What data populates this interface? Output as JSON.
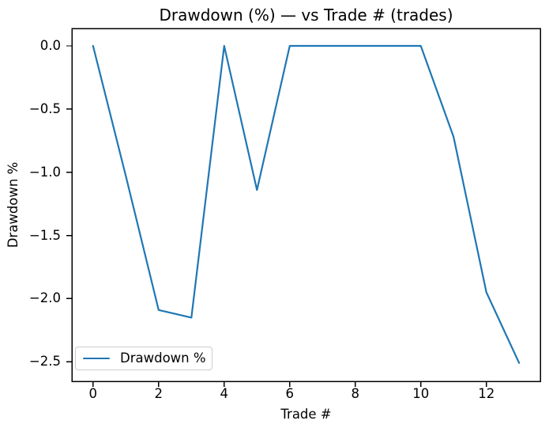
{
  "chart_data": {
    "type": "line",
    "title": "Drawdown (%) — vs Trade # (trades)",
    "xlabel": "Trade #",
    "ylabel": "Drawdown %",
    "x": [
      0,
      1,
      2,
      3,
      4,
      5,
      6,
      7,
      8,
      9,
      10,
      11,
      12,
      13
    ],
    "series": [
      {
        "name": "Drawdown %",
        "color": "#1f77b4",
        "values": [
          0.0,
          -1.03,
          -2.09,
          -2.15,
          0.0,
          -1.14,
          0.0,
          0.0,
          0.0,
          0.0,
          0.0,
          -0.72,
          -1.95,
          -2.51
        ]
      }
    ],
    "xlim": [
      -0.645,
      13.645
    ],
    "ylim": [
      -2.655,
      0.138
    ],
    "x_ticks": [
      0,
      2,
      4,
      6,
      8,
      10,
      12
    ],
    "x_tick_labels": [
      "0",
      "2",
      "4",
      "6",
      "8",
      "10",
      "12"
    ],
    "y_ticks": [
      0.0,
      -0.5,
      -1.0,
      -1.5,
      -2.0,
      -2.5
    ],
    "y_tick_labels": [
      "0.0",
      "−0.5",
      "−1.0",
      "−1.5",
      "−2.0",
      "−2.5"
    ],
    "grid": false,
    "legend": {
      "position": "lower left",
      "entries": [
        {
          "label": "Drawdown %",
          "color": "#1f77b4"
        }
      ]
    }
  }
}
